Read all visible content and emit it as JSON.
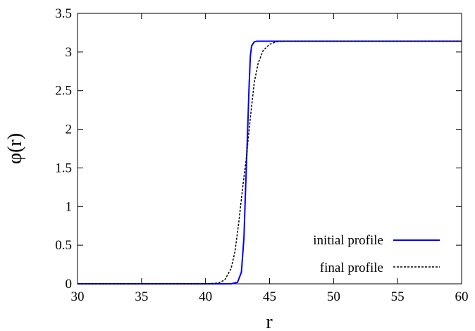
{
  "chart_data": {
    "type": "line",
    "title": "",
    "xlabel": "r",
    "ylabel": "φ(r)",
    "xlim": [
      30,
      60
    ],
    "ylim": [
      0,
      3.5
    ],
    "xticks": [
      "30",
      "35",
      "40",
      "45",
      "50",
      "55",
      "60"
    ],
    "yticks": [
      "0",
      "0.5",
      "1",
      "1.5",
      "2",
      "2.5",
      "3",
      "3.5"
    ],
    "grid": false,
    "legend_position": "bottom-right",
    "series": [
      {
        "name": "initial profile",
        "color": "#0000ff",
        "style": "solid",
        "x": [
          30,
          40,
          42,
          42.5,
          42.8,
          43.0,
          43.1,
          43.2,
          43.3,
          43.4,
          43.5,
          43.6,
          43.8,
          44.0,
          44.5,
          45,
          50,
          55,
          60
        ],
        "y": [
          0,
          0,
          0.0,
          0.02,
          0.15,
          0.6,
          1.1,
          1.57,
          2.05,
          2.55,
          2.95,
          3.08,
          3.13,
          3.14,
          3.14,
          3.14,
          3.14,
          3.14,
          3.14
        ]
      },
      {
        "name": "final profile",
        "color": "#000000",
        "style": "dashed",
        "x": [
          30,
          40,
          41.0,
          41.5,
          42.0,
          42.3,
          42.6,
          42.9,
          43.2,
          43.5,
          43.8,
          44.1,
          44.5,
          45.0,
          45.5,
          46,
          50,
          55,
          60
        ],
        "y": [
          0,
          0,
          0.01,
          0.05,
          0.2,
          0.42,
          0.8,
          1.25,
          1.65,
          2.15,
          2.6,
          2.85,
          3.02,
          3.1,
          3.13,
          3.14,
          3.14,
          3.14,
          3.14
        ]
      }
    ]
  }
}
